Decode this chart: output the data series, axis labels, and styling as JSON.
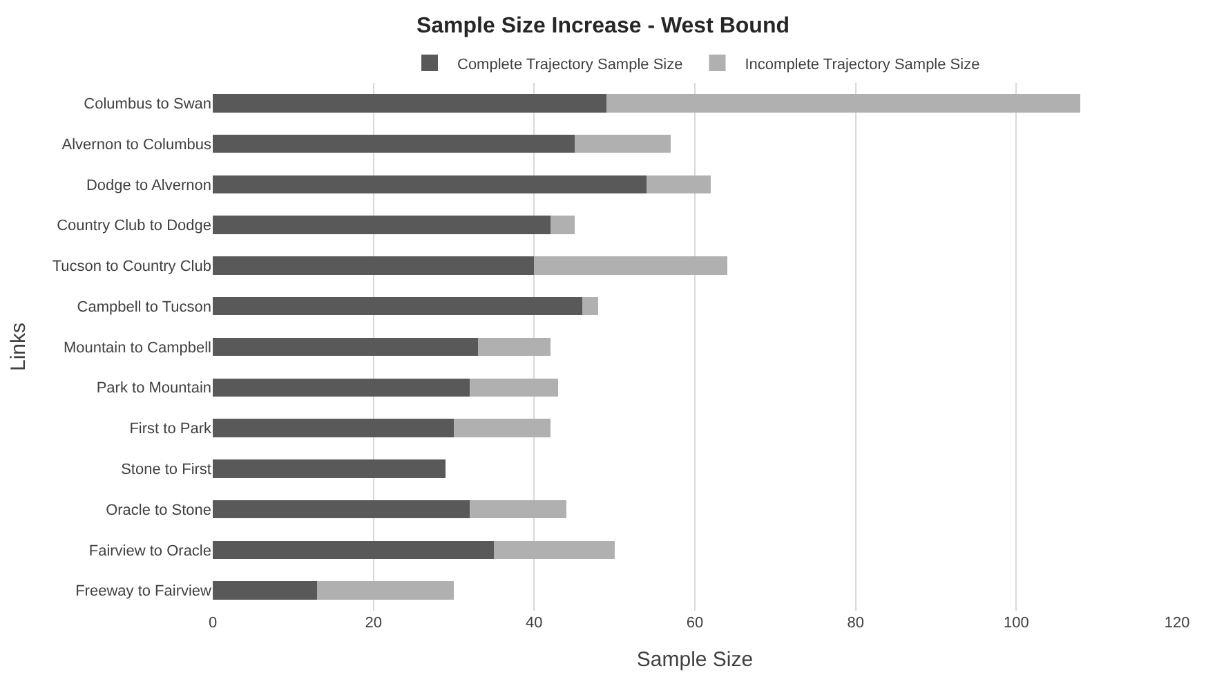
{
  "chart_data": {
    "type": "bar",
    "orientation": "horizontal",
    "stacked": true,
    "title": "Sample Size Increase - West Bound",
    "xlabel": "Sample Size",
    "ylabel": "Links",
    "categories": [
      "Columbus to Swan",
      "Alvernon to Columbus",
      "Dodge to Alvernon",
      "Country Club to Dodge",
      "Tucson to Country Club",
      "Campbell to Tucson",
      "Mountain to Campbell",
      "Park to Mountain",
      "First to Park",
      "Stone to First",
      "Oracle to Stone",
      "Fairview to Oracle",
      "Freeway to Fairview"
    ],
    "series": [
      {
        "name": "Complete Trajectory Sample Size",
        "color": "#595959",
        "values": [
          49,
          45,
          54,
          42,
          40,
          46,
          33,
          32,
          30,
          29,
          32,
          35,
          13
        ]
      },
      {
        "name": "Incomplete Trajectory Sample Size",
        "color": "#b0b0b0",
        "values": [
          59,
          12,
          8,
          3,
          24,
          2,
          9,
          11,
          12,
          0,
          12,
          15,
          17
        ]
      }
    ],
    "xlim": [
      0,
      120
    ],
    "xticks": [
      0,
      20,
      40,
      60,
      80,
      100,
      120
    ],
    "grid": "x",
    "legend": "top"
  }
}
